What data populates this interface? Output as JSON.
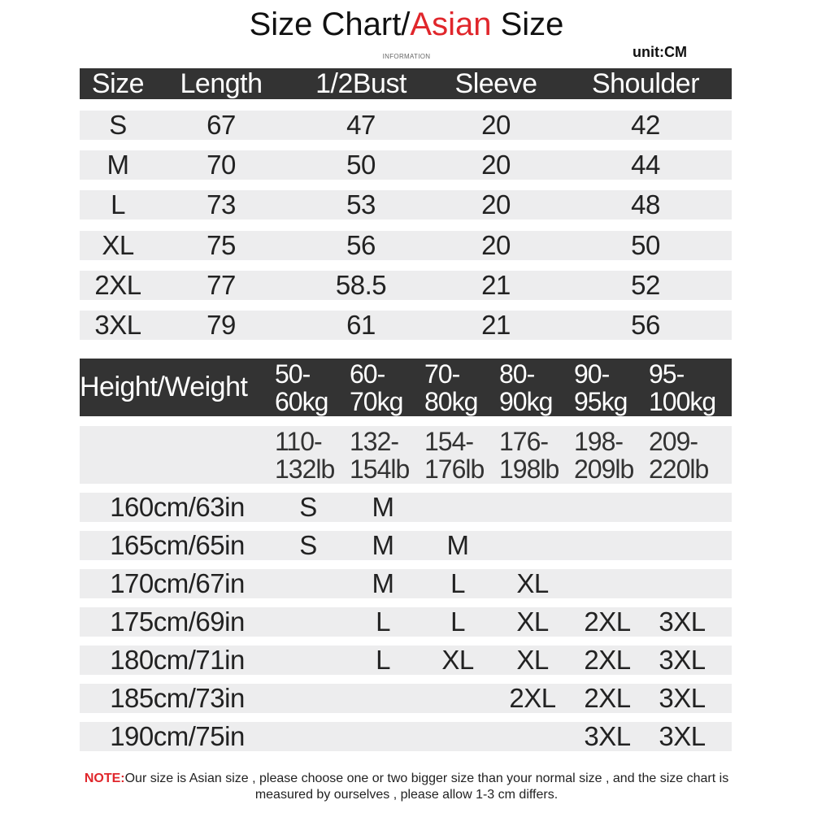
{
  "title": {
    "prefix": "Size Chart/",
    "highlight": "Asian",
    "suffix": " Size"
  },
  "subtitle": "INFORMATION",
  "unit": "unit:CM",
  "colors": {
    "accent_red": "#e0262b",
    "header_bg": "#333333",
    "row_bg": "#ededee"
  },
  "size_table": {
    "headers": [
      "Size",
      "Length",
      "1/2Bust",
      "Sleeve",
      "Shoulder"
    ],
    "rows": [
      [
        "S",
        "67",
        "47",
        "20",
        "42"
      ],
      [
        "M",
        "70",
        "50",
        "20",
        "44"
      ],
      [
        "L",
        "73",
        "53",
        "20",
        "48"
      ],
      [
        "XL",
        "75",
        "56",
        "20",
        "50"
      ],
      [
        "2XL",
        "77",
        "58.5",
        "21",
        "52"
      ],
      [
        "3XL",
        "79",
        "61",
        "21",
        "56"
      ]
    ]
  },
  "fit_table": {
    "header_label": "Height/Weight",
    "kg": [
      [
        "50-",
        "60kg"
      ],
      [
        "60-",
        "70kg"
      ],
      [
        "70-",
        "80kg"
      ],
      [
        "80-",
        "90kg"
      ],
      [
        "90-",
        "95kg"
      ],
      [
        "95-",
        "100kg"
      ]
    ],
    "lb": [
      [
        "110-",
        "132lb"
      ],
      [
        "132-",
        "154lb"
      ],
      [
        "154-",
        "176lb"
      ],
      [
        "176-",
        "198lb"
      ],
      [
        "198-",
        "209lb"
      ],
      [
        "209-",
        "220lb"
      ]
    ],
    "rows": [
      {
        "height": "160cm/63in",
        "sizes": [
          "S",
          "M",
          "",
          "",
          "",
          ""
        ]
      },
      {
        "height": "165cm/65in",
        "sizes": [
          "S",
          "M",
          "M",
          "",
          "",
          ""
        ]
      },
      {
        "height": "170cm/67in",
        "sizes": [
          "",
          "M",
          "L",
          "XL",
          "",
          ""
        ]
      },
      {
        "height": "175cm/69in",
        "sizes": [
          "",
          "L",
          "L",
          "XL",
          "2XL",
          "3XL"
        ]
      },
      {
        "height": "180cm/71in",
        "sizes": [
          "",
          "L",
          "XL",
          "XL",
          "2XL",
          "3XL"
        ]
      },
      {
        "height": "185cm/73in",
        "sizes": [
          "",
          "",
          "",
          "2XL",
          "2XL",
          "3XL"
        ]
      },
      {
        "height": "190cm/75in",
        "sizes": [
          "",
          "",
          "",
          "",
          "3XL",
          "3XL"
        ]
      }
    ]
  },
  "note": {
    "label": "NOTE:",
    "text": "Our size is Asian size , please choose one or two bigger size than your normal size , and the size chart is measured by ourselves , please allow 1-3 cm differs."
  }
}
